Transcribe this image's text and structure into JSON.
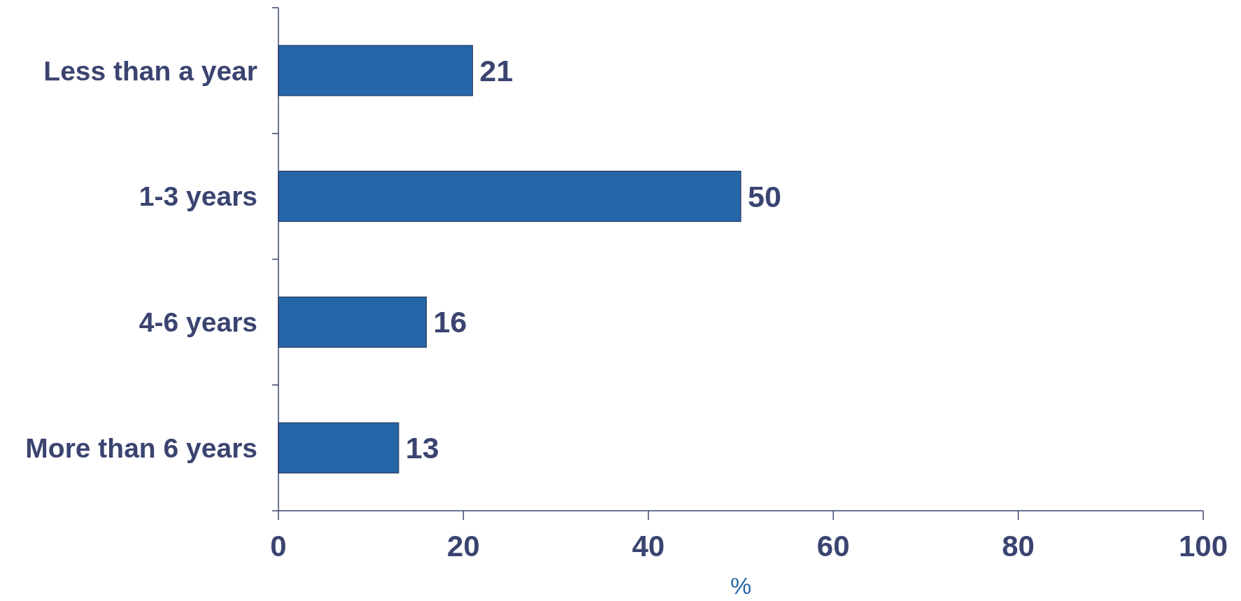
{
  "chart_data": {
    "type": "bar",
    "orientation": "horizontal",
    "categories": [
      "Less than a year",
      "1-3 years",
      "4-6 years",
      "More than 6 years"
    ],
    "values": [
      21,
      50,
      16,
      13
    ],
    "color": "#2566a8",
    "xlim": [
      0,
      100
    ],
    "xticks": [
      0,
      20,
      40,
      60,
      80,
      100
    ],
    "xlabel": "%",
    "data_labels": true,
    "grid": false
  }
}
